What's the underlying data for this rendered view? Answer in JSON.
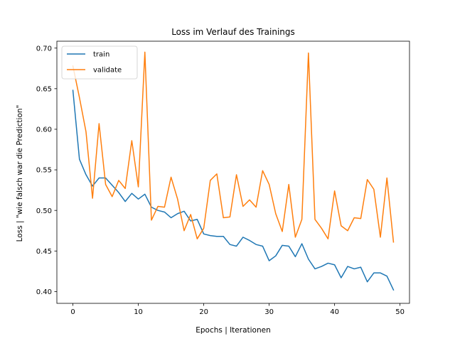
{
  "chart_data": {
    "type": "line",
    "title": "Loss im Verlauf des Trainings",
    "xlabel": "Epochs | Iterationen",
    "ylabel": "Loss | \"wie falsch war die Prediction\"",
    "xlim": [
      -2.45,
      51.45
    ],
    "ylim": [
      0.3855,
      0.7085
    ],
    "xticks": [
      0,
      10,
      20,
      30,
      40,
      50
    ],
    "yticks": [
      0.4,
      0.45,
      0.5,
      0.55,
      0.6,
      0.65,
      0.7
    ],
    "ytick_labels": [
      "0.40",
      "0.45",
      "0.50",
      "0.55",
      "0.60",
      "0.65",
      "0.70"
    ],
    "grid": false,
    "legend_position": "top-left",
    "x": [
      0,
      1,
      2,
      3,
      4,
      5,
      6,
      7,
      8,
      9,
      10,
      11,
      12,
      13,
      14,
      15,
      16,
      17,
      18,
      19,
      20,
      21,
      22,
      23,
      24,
      25,
      26,
      27,
      28,
      29,
      30,
      31,
      32,
      33,
      34,
      35,
      36,
      37,
      38,
      39,
      40,
      41,
      42,
      43,
      44,
      45,
      46,
      47,
      48,
      49
    ],
    "series": [
      {
        "name": "train",
        "color": "#1f77b4",
        "values": [
          0.648,
          0.563,
          0.544,
          0.53,
          0.54,
          0.54,
          0.531,
          0.522,
          0.511,
          0.521,
          0.514,
          0.52,
          0.504,
          0.5,
          0.498,
          0.491,
          0.496,
          0.499,
          0.487,
          0.489,
          0.471,
          0.469,
          0.468,
          0.468,
          0.458,
          0.456,
          0.467,
          0.463,
          0.458,
          0.456,
          0.438,
          0.444,
          0.457,
          0.456,
          0.443,
          0.459,
          0.44,
          0.428,
          0.431,
          0.435,
          0.433,
          0.417,
          0.431,
          0.428,
          0.43,
          0.412,
          0.423,
          0.423,
          0.419,
          0.402
        ]
      },
      {
        "name": "validate",
        "color": "#ff7f0e",
        "values": [
          0.678,
          0.639,
          0.597,
          0.515,
          0.607,
          0.532,
          0.517,
          0.537,
          0.527,
          0.586,
          0.529,
          0.695,
          0.488,
          0.505,
          0.504,
          0.541,
          0.514,
          0.475,
          0.495,
          0.465,
          0.478,
          0.537,
          0.545,
          0.491,
          0.492,
          0.544,
          0.505,
          0.513,
          0.504,
          0.549,
          0.532,
          0.496,
          0.474,
          0.532,
          0.467,
          0.489,
          0.694,
          0.489,
          0.478,
          0.465,
          0.524,
          0.481,
          0.475,
          0.491,
          0.49,
          0.538,
          0.526,
          0.467,
          0.54,
          0.461
        ]
      }
    ]
  }
}
